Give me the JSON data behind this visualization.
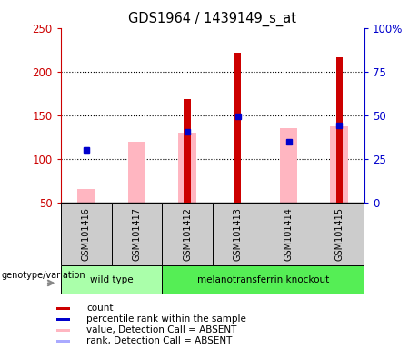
{
  "title": "GDS1964 / 1439149_s_at",
  "samples": [
    "GSM101416",
    "GSM101417",
    "GSM101412",
    "GSM101413",
    "GSM101414",
    "GSM101415"
  ],
  "red_bar_values": [
    null,
    null,
    168,
    222,
    null,
    216
  ],
  "pink_bar_values": [
    65,
    120,
    130,
    null,
    135,
    137
  ],
  "blue_square_values": [
    110,
    null,
    131,
    149,
    120,
    138
  ],
  "light_blue_square_values": [
    110,
    null,
    null,
    null,
    null,
    null
  ],
  "ylim_left": [
    50,
    250
  ],
  "ylim_right": [
    0,
    100
  ],
  "y_ticks_left": [
    50,
    100,
    150,
    200,
    250
  ],
  "y_ticks_right": [
    0,
    25,
    50,
    75,
    100
  ],
  "y_tick_labels_right": [
    "0",
    "25",
    "50",
    "75",
    "100%"
  ],
  "left_axis_color": "#cc0000",
  "right_axis_color": "#0000cc",
  "pink_bar_color": "#ffb6c1",
  "red_bar_color": "#cc0000",
  "blue_sq_color": "#0000cc",
  "light_blue_sq_color": "#aaaaff",
  "legend_items": [
    {
      "color": "#cc0000",
      "label": "count"
    },
    {
      "color": "#0000cc",
      "label": "percentile rank within the sample"
    },
    {
      "color": "#ffb6c1",
      "label": "value, Detection Call = ABSENT"
    },
    {
      "color": "#aaaaff",
      "label": "rank, Detection Call = ABSENT"
    }
  ],
  "genotype_label": "genotype/variation",
  "wildtype_label": "wild type",
  "ko_label": "melanotransferrin knockout",
  "sample_bg": "#cccccc",
  "wt_color": "#aaffaa",
  "ko_color": "#55ee55"
}
